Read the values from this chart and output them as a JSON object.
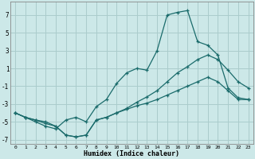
{
  "xlabel": "Humidex (Indice chaleur)",
  "bg_color": "#cce8e8",
  "grid_color": "#aacccc",
  "line_color": "#1a6b6b",
  "xlim": [
    -0.5,
    23.5
  ],
  "ylim": [
    -7.5,
    8.5
  ],
  "xticks": [
    0,
    1,
    2,
    3,
    4,
    5,
    6,
    7,
    8,
    9,
    10,
    11,
    12,
    13,
    14,
    15,
    16,
    17,
    18,
    19,
    20,
    21,
    22,
    23
  ],
  "yticks": [
    -7,
    -5,
    -3,
    -1,
    1,
    3,
    5,
    7
  ],
  "line1_x": [
    0,
    1,
    2,
    3,
    4,
    5,
    6,
    7,
    8,
    9,
    10,
    11,
    12,
    13,
    14,
    15,
    16,
    17,
    18,
    19,
    20,
    21,
    22,
    23
  ],
  "line1_y": [
    -4.0,
    -4.5,
    -4.8,
    -5.2,
    -5.5,
    -6.5,
    -6.7,
    -6.5,
    -4.8,
    -4.5,
    -4.0,
    -3.6,
    -3.2,
    -2.9,
    -2.5,
    -2.0,
    -1.5,
    -1.0,
    -0.5,
    0.0,
    -0.5,
    -1.5,
    -2.5,
    -2.5
  ],
  "line2_x": [
    0,
    1,
    2,
    3,
    4,
    5,
    6,
    7,
    8,
    9,
    10,
    11,
    12,
    13,
    14,
    15,
    16,
    17,
    18,
    19,
    20,
    21,
    22,
    23
  ],
  "line2_y": [
    -4.0,
    -4.5,
    -5.0,
    -5.5,
    -5.8,
    -4.8,
    -4.5,
    -5.0,
    -3.3,
    -2.5,
    -0.7,
    0.5,
    1.0,
    0.8,
    3.0,
    7.0,
    7.3,
    7.5,
    4.0,
    3.6,
    2.5,
    -1.2,
    -2.3,
    -2.5
  ],
  "line3_x": [
    0,
    1,
    2,
    3,
    4,
    5,
    6,
    7,
    8,
    9,
    10,
    11,
    12,
    13,
    14,
    15,
    16,
    17,
    18,
    19,
    20,
    21,
    22,
    23
  ],
  "line3_y": [
    -4.0,
    -4.5,
    -4.8,
    -5.0,
    -5.5,
    -6.5,
    -6.7,
    -6.5,
    -4.8,
    -4.5,
    -4.0,
    -3.5,
    -2.8,
    -2.2,
    -1.5,
    -0.5,
    0.5,
    1.2,
    2.0,
    2.5,
    2.0,
    0.8,
    -0.5,
    -1.2
  ]
}
